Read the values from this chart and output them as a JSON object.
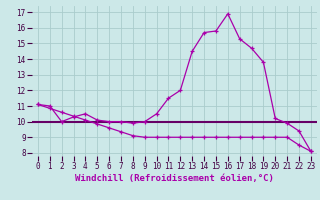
{
  "xlabel": "Windchill (Refroidissement éolien,°C)",
  "background_color": "#cce8e8",
  "grid_color": "#aacccc",
  "line_color": "#aa00aa",
  "hline_color": "#660066",
  "x": [
    0,
    1,
    2,
    3,
    4,
    5,
    6,
    7,
    8,
    9,
    10,
    11,
    12,
    13,
    14,
    15,
    16,
    17,
    18,
    19,
    20,
    21,
    22,
    23
  ],
  "y_line1": [
    11.1,
    11.0,
    10.0,
    10.3,
    10.5,
    10.1,
    10.0,
    10.0,
    9.9,
    10.0,
    10.5,
    11.5,
    12.0,
    14.5,
    15.7,
    15.8,
    16.9,
    15.3,
    14.7,
    13.8,
    10.2,
    9.9,
    9.4,
    8.1
  ],
  "y_line2": [
    11.1,
    10.85,
    10.6,
    10.35,
    10.1,
    9.85,
    9.6,
    9.35,
    9.1,
    9.0,
    9.0,
    9.0,
    9.0,
    9.0,
    9.0,
    9.0,
    9.0,
    9.0,
    9.0,
    9.0,
    9.0,
    9.0,
    8.5,
    8.1
  ],
  "y_hline": 10.0,
  "ylim": [
    7.8,
    17.4
  ],
  "xlim": [
    -0.5,
    23.5
  ],
  "yticks": [
    8,
    9,
    10,
    11,
    12,
    13,
    14,
    15,
    16,
    17
  ],
  "xticks": [
    0,
    1,
    2,
    3,
    4,
    5,
    6,
    7,
    8,
    9,
    10,
    11,
    12,
    13,
    14,
    15,
    16,
    17,
    18,
    19,
    20,
    21,
    22,
    23
  ],
  "tick_fontsize": 5.5,
  "xlabel_fontsize": 6.5
}
